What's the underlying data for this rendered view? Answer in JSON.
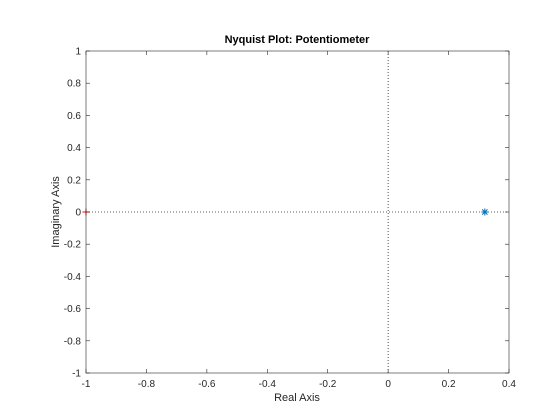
{
  "chart_data": {
    "type": "scatter",
    "title": "Nyquist Plot: Potentiometer",
    "xlabel": "Real Axis",
    "ylabel": "Imaginary Axis",
    "xlim": [
      -1,
      0.4
    ],
    "ylim": [
      -1,
      1
    ],
    "x_ticks": [
      -1,
      -0.8,
      -0.6,
      -0.4,
      -0.2,
      0,
      0.2,
      0.4
    ],
    "x_tick_labels": [
      "-1",
      "-0.8",
      "-0.6",
      "-0.4",
      "-0.2",
      "0",
      "0.2",
      "0.4"
    ],
    "y_ticks": [
      -1,
      -0.8,
      -0.6,
      -0.4,
      -0.2,
      0,
      0.2,
      0.4,
      0.6,
      0.8,
      1
    ],
    "y_tick_labels": [
      "-1",
      "-0.8",
      "-0.6",
      "-0.4",
      "-0.2",
      "0",
      "0.2",
      "0.4",
      "0.6",
      "0.8",
      "1"
    ],
    "grid": false,
    "box": true,
    "reference_lines": [
      {
        "orientation": "vertical",
        "value": 0,
        "style": "dotted"
      },
      {
        "orientation": "horizontal",
        "value": 0,
        "style": "dotted"
      }
    ],
    "series": [
      {
        "marker": "asterisk",
        "color": "#0072bd",
        "points": [
          {
            "x": 0.32,
            "y": 0
          }
        ]
      },
      {
        "marker": "plus",
        "color": "#ff0000",
        "points": [
          {
            "x": -1,
            "y": 0
          }
        ]
      }
    ]
  },
  "colors": {
    "axes": "#262626",
    "reference": "#262626",
    "background": "#ffffff"
  }
}
